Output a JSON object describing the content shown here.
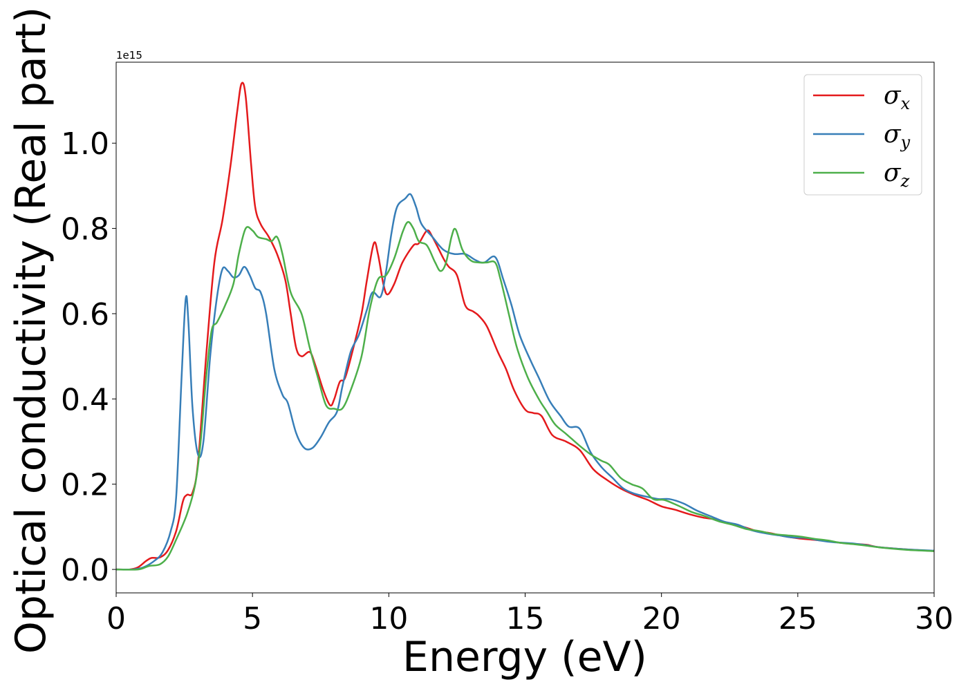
{
  "chart_data": {
    "type": "line",
    "xlabel": "Energy (eV)",
    "ylabel": "Optical conductivity (Real part)",
    "y_offset_label": "1e15",
    "xlim": [
      0,
      30
    ],
    "ylim": [
      -0.055,
      1.19
    ],
    "xticks": [
      0,
      5,
      10,
      15,
      20,
      25,
      30
    ],
    "yticks": [
      0.0,
      0.2,
      0.4,
      0.6,
      0.8,
      1.0
    ],
    "grid": false,
    "legend_position": "top-right",
    "series": [
      {
        "name": "σx",
        "base": "σ",
        "sub": "x",
        "color": "#e41a1c",
        "points": [
          [
            0,
            0
          ],
          [
            0.5,
            0
          ],
          [
            0.8,
            0.005
          ],
          [
            1.1,
            0.02
          ],
          [
            1.3,
            0.027
          ],
          [
            1.6,
            0.028
          ],
          [
            1.9,
            0.045
          ],
          [
            2.2,
            0.09
          ],
          [
            2.45,
            0.16
          ],
          [
            2.6,
            0.175
          ],
          [
            2.8,
            0.18
          ],
          [
            3.0,
            0.25
          ],
          [
            3.3,
            0.5
          ],
          [
            3.6,
            0.72
          ],
          [
            3.9,
            0.82
          ],
          [
            4.2,
            0.95
          ],
          [
            4.45,
            1.08
          ],
          [
            4.6,
            1.14
          ],
          [
            4.75,
            1.11
          ],
          [
            4.95,
            0.95
          ],
          [
            5.1,
            0.85
          ],
          [
            5.3,
            0.81
          ],
          [
            5.6,
            0.78
          ],
          [
            5.9,
            0.74
          ],
          [
            6.2,
            0.68
          ],
          [
            6.4,
            0.6
          ],
          [
            6.6,
            0.52
          ],
          [
            6.8,
            0.5
          ],
          [
            7.1,
            0.51
          ],
          [
            7.3,
            0.48
          ],
          [
            7.6,
            0.42
          ],
          [
            7.85,
            0.385
          ],
          [
            8.0,
            0.4
          ],
          [
            8.2,
            0.44
          ],
          [
            8.4,
            0.45
          ],
          [
            8.7,
            0.52
          ],
          [
            9.0,
            0.6
          ],
          [
            9.2,
            0.68
          ],
          [
            9.45,
            0.765
          ],
          [
            9.6,
            0.74
          ],
          [
            9.8,
            0.67
          ],
          [
            9.95,
            0.645
          ],
          [
            10.2,
            0.67
          ],
          [
            10.5,
            0.72
          ],
          [
            10.9,
            0.76
          ],
          [
            11.1,
            0.765
          ],
          [
            11.4,
            0.795
          ],
          [
            11.6,
            0.78
          ],
          [
            12.0,
            0.73
          ],
          [
            12.2,
            0.71
          ],
          [
            12.5,
            0.69
          ],
          [
            12.8,
            0.62
          ],
          [
            13.1,
            0.605
          ],
          [
            13.3,
            0.595
          ],
          [
            13.6,
            0.57
          ],
          [
            14.0,
            0.51
          ],
          [
            14.3,
            0.47
          ],
          [
            14.6,
            0.42
          ],
          [
            15.0,
            0.375
          ],
          [
            15.3,
            0.367
          ],
          [
            15.6,
            0.36
          ],
          [
            16.0,
            0.315
          ],
          [
            16.5,
            0.3
          ],
          [
            17.0,
            0.28
          ],
          [
            17.5,
            0.235
          ],
          [
            18.0,
            0.21
          ],
          [
            18.5,
            0.19
          ],
          [
            19.0,
            0.175
          ],
          [
            19.5,
            0.163
          ],
          [
            20.0,
            0.148
          ],
          [
            20.5,
            0.14
          ],
          [
            21.0,
            0.13
          ],
          [
            21.5,
            0.122
          ],
          [
            22.0,
            0.117
          ],
          [
            22.5,
            0.107
          ],
          [
            23.0,
            0.1
          ],
          [
            23.5,
            0.09
          ],
          [
            24.0,
            0.085
          ],
          [
            24.5,
            0.078
          ],
          [
            25.0,
            0.073
          ],
          [
            25.5,
            0.07
          ],
          [
            26.0,
            0.067
          ],
          [
            26.5,
            0.063
          ],
          [
            27.0,
            0.06
          ],
          [
            27.5,
            0.058
          ],
          [
            28.0,
            0.052
          ],
          [
            29.0,
            0.047
          ],
          [
            30.0,
            0.043
          ]
        ]
      },
      {
        "name": "σy",
        "base": "σ",
        "sub": "y",
        "color": "#377eb8",
        "points": [
          [
            0,
            0
          ],
          [
            0.6,
            0
          ],
          [
            1.0,
            0.005
          ],
          [
            1.4,
            0.02
          ],
          [
            1.7,
            0.04
          ],
          [
            2.0,
            0.09
          ],
          [
            2.2,
            0.17
          ],
          [
            2.4,
            0.45
          ],
          [
            2.55,
            0.635
          ],
          [
            2.65,
            0.58
          ],
          [
            2.8,
            0.38
          ],
          [
            3.0,
            0.27
          ],
          [
            3.2,
            0.3
          ],
          [
            3.45,
            0.5
          ],
          [
            3.7,
            0.64
          ],
          [
            3.9,
            0.705
          ],
          [
            4.1,
            0.7
          ],
          [
            4.3,
            0.685
          ],
          [
            4.5,
            0.69
          ],
          [
            4.7,
            0.71
          ],
          [
            4.9,
            0.69
          ],
          [
            5.1,
            0.66
          ],
          [
            5.3,
            0.65
          ],
          [
            5.5,
            0.6
          ],
          [
            5.8,
            0.47
          ],
          [
            6.1,
            0.41
          ],
          [
            6.3,
            0.39
          ],
          [
            6.6,
            0.32
          ],
          [
            6.9,
            0.285
          ],
          [
            7.2,
            0.285
          ],
          [
            7.5,
            0.31
          ],
          [
            7.8,
            0.345
          ],
          [
            8.1,
            0.37
          ],
          [
            8.3,
            0.43
          ],
          [
            8.6,
            0.51
          ],
          [
            8.9,
            0.55
          ],
          [
            9.2,
            0.61
          ],
          [
            9.4,
            0.65
          ],
          [
            9.7,
            0.64
          ],
          [
            9.9,
            0.7
          ],
          [
            10.1,
            0.79
          ],
          [
            10.3,
            0.85
          ],
          [
            10.6,
            0.87
          ],
          [
            10.8,
            0.88
          ],
          [
            11.0,
            0.85
          ],
          [
            11.2,
            0.81
          ],
          [
            11.6,
            0.78
          ],
          [
            12.0,
            0.75
          ],
          [
            12.4,
            0.74
          ],
          [
            12.8,
            0.74
          ],
          [
            13.2,
            0.725
          ],
          [
            13.5,
            0.72
          ],
          [
            13.9,
            0.733
          ],
          [
            14.2,
            0.68
          ],
          [
            14.5,
            0.62
          ],
          [
            14.8,
            0.55
          ],
          [
            15.2,
            0.49
          ],
          [
            15.5,
            0.45
          ],
          [
            15.9,
            0.395
          ],
          [
            16.3,
            0.36
          ],
          [
            16.6,
            0.335
          ],
          [
            17.0,
            0.33
          ],
          [
            17.4,
            0.275
          ],
          [
            17.8,
            0.24
          ],
          [
            18.2,
            0.215
          ],
          [
            18.6,
            0.19
          ],
          [
            19.0,
            0.178
          ],
          [
            19.5,
            0.17
          ],
          [
            19.9,
            0.165
          ],
          [
            20.3,
            0.165
          ],
          [
            20.8,
            0.155
          ],
          [
            21.3,
            0.138
          ],
          [
            21.8,
            0.125
          ],
          [
            22.3,
            0.112
          ],
          [
            22.8,
            0.105
          ],
          [
            23.3,
            0.092
          ],
          [
            23.8,
            0.085
          ],
          [
            24.3,
            0.08
          ],
          [
            24.8,
            0.075
          ],
          [
            25.3,
            0.074
          ],
          [
            25.8,
            0.068
          ],
          [
            26.3,
            0.064
          ],
          [
            27.0,
            0.061
          ],
          [
            27.5,
            0.057
          ],
          [
            28.0,
            0.052
          ],
          [
            29.0,
            0.047
          ],
          [
            30.0,
            0.044
          ]
        ]
      },
      {
        "name": "σz",
        "base": "σ",
        "sub": "z",
        "color": "#4daf4a",
        "points": [
          [
            0,
            0
          ],
          [
            0.8,
            0
          ],
          [
            1.2,
            0.008
          ],
          [
            1.6,
            0.012
          ],
          [
            1.9,
            0.03
          ],
          [
            2.2,
            0.07
          ],
          [
            2.6,
            0.13
          ],
          [
            2.9,
            0.2
          ],
          [
            3.1,
            0.3
          ],
          [
            3.3,
            0.45
          ],
          [
            3.5,
            0.56
          ],
          [
            3.7,
            0.58
          ],
          [
            4.0,
            0.62
          ],
          [
            4.3,
            0.67
          ],
          [
            4.5,
            0.74
          ],
          [
            4.75,
            0.8
          ],
          [
            5.0,
            0.795
          ],
          [
            5.2,
            0.78
          ],
          [
            5.5,
            0.775
          ],
          [
            5.7,
            0.77
          ],
          [
            5.9,
            0.78
          ],
          [
            6.1,
            0.74
          ],
          [
            6.4,
            0.65
          ],
          [
            6.8,
            0.6
          ],
          [
            7.1,
            0.52
          ],
          [
            7.4,
            0.45
          ],
          [
            7.7,
            0.385
          ],
          [
            8.0,
            0.377
          ],
          [
            8.3,
            0.378
          ],
          [
            8.6,
            0.42
          ],
          [
            9.0,
            0.5
          ],
          [
            9.3,
            0.61
          ],
          [
            9.6,
            0.68
          ],
          [
            9.9,
            0.69
          ],
          [
            10.2,
            0.73
          ],
          [
            10.5,
            0.79
          ],
          [
            10.7,
            0.815
          ],
          [
            10.9,
            0.8
          ],
          [
            11.1,
            0.77
          ],
          [
            11.4,
            0.76
          ],
          [
            11.7,
            0.72
          ],
          [
            11.9,
            0.7
          ],
          [
            12.1,
            0.72
          ],
          [
            12.3,
            0.78
          ],
          [
            12.45,
            0.798
          ],
          [
            12.7,
            0.75
          ],
          [
            13.0,
            0.725
          ],
          [
            13.3,
            0.72
          ],
          [
            13.6,
            0.72
          ],
          [
            13.9,
            0.72
          ],
          [
            14.1,
            0.68
          ],
          [
            14.4,
            0.6
          ],
          [
            14.7,
            0.52
          ],
          [
            15.1,
            0.45
          ],
          [
            15.5,
            0.4
          ],
          [
            15.8,
            0.37
          ],
          [
            16.1,
            0.34
          ],
          [
            16.5,
            0.318
          ],
          [
            17.0,
            0.29
          ],
          [
            17.4,
            0.27
          ],
          [
            17.8,
            0.255
          ],
          [
            18.1,
            0.245
          ],
          [
            18.5,
            0.215
          ],
          [
            18.9,
            0.2
          ],
          [
            19.3,
            0.19
          ],
          [
            19.7,
            0.165
          ],
          [
            20.1,
            0.163
          ],
          [
            20.6,
            0.15
          ],
          [
            21.1,
            0.135
          ],
          [
            21.6,
            0.125
          ],
          [
            22.1,
            0.113
          ],
          [
            22.6,
            0.105
          ],
          [
            23.1,
            0.095
          ],
          [
            23.6,
            0.09
          ],
          [
            24.1,
            0.083
          ],
          [
            24.6,
            0.08
          ],
          [
            25.1,
            0.077
          ],
          [
            25.6,
            0.072
          ],
          [
            26.1,
            0.068
          ],
          [
            26.6,
            0.062
          ],
          [
            27.1,
            0.059
          ],
          [
            27.6,
            0.055
          ],
          [
            28.1,
            0.051
          ],
          [
            29.0,
            0.046
          ],
          [
            30.0,
            0.043
          ]
        ]
      }
    ]
  }
}
